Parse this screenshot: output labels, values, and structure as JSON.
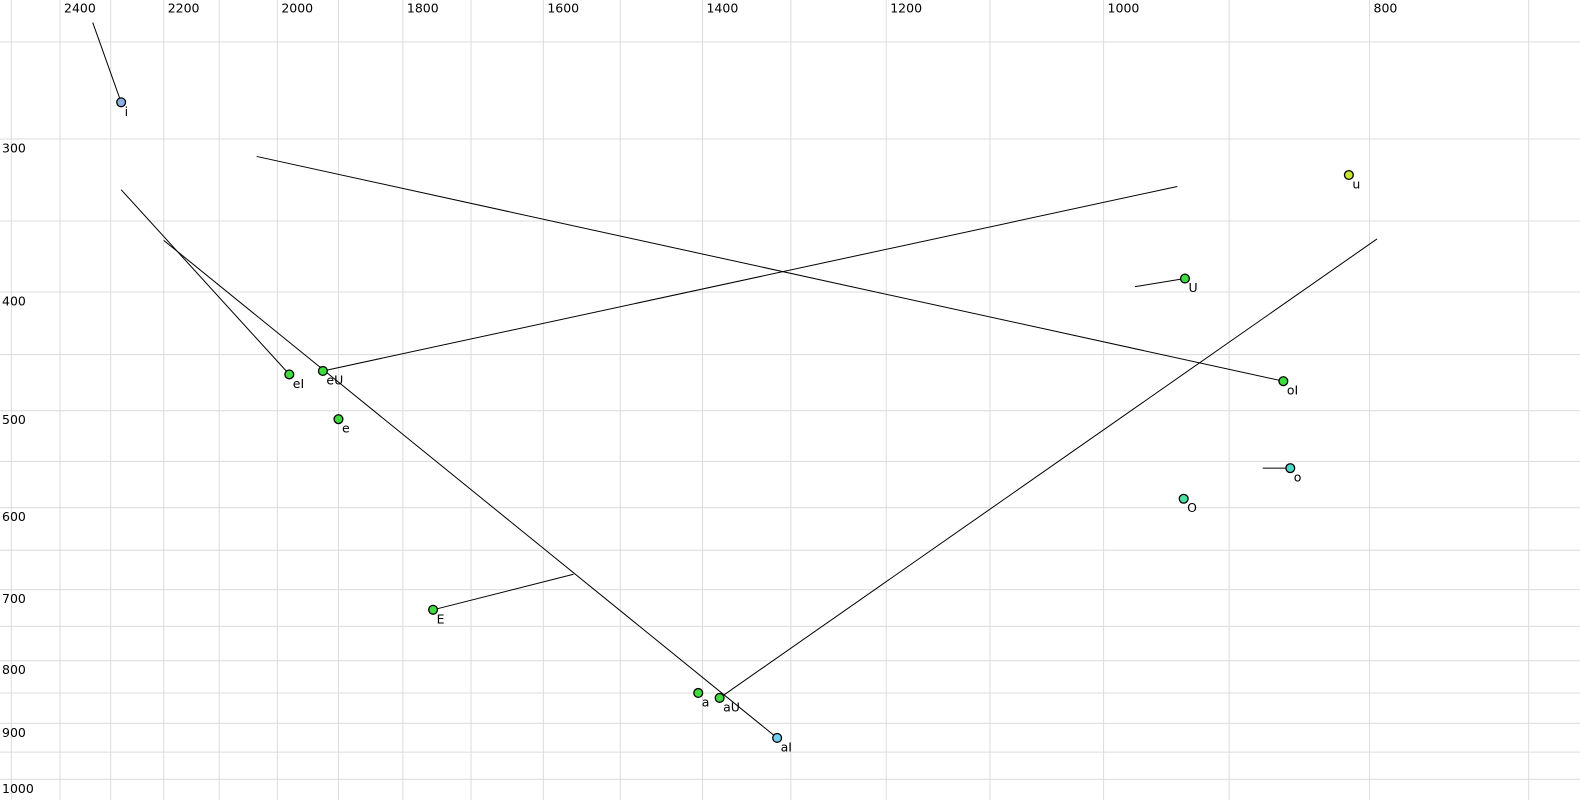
{
  "chart_data": {
    "type": "scatter",
    "x_axis": {
      "tick_labels": [
        "2400",
        "2200",
        "2000",
        "1800",
        "1600",
        "1400",
        "1200",
        "1000",
        "800"
      ],
      "tick_values": [
        2400,
        2200,
        2000,
        1800,
        1600,
        1400,
        1200,
        1000,
        800
      ],
      "scale": "log",
      "reversed": true,
      "grid_step_hz": 100,
      "grid_range": [
        700,
        2500
      ]
    },
    "y_axis": {
      "tick_labels": [
        "300",
        "400",
        "500",
        "600",
        "700",
        "800",
        "900",
        "1000"
      ],
      "tick_values": [
        300,
        400,
        500,
        600,
        700,
        800,
        900,
        1000
      ],
      "scale": "log",
      "downward": true,
      "grid_step_hz": 50,
      "grid_range": [
        250,
        1000
      ]
    },
    "grid_color": "#dcdcdc",
    "line_color": "#000000",
    "points": [
      {
        "label": "i",
        "f2": 2280,
        "f1": 280,
        "color": "#8cb2e0",
        "glide": {
          "f2": 2335,
          "f1": 241
        }
      },
      {
        "label": "u",
        "f2": 814,
        "f1": 321,
        "color": "#c6e72f"
      },
      {
        "label": "U",
        "f2": 934,
        "f1": 390,
        "color": "#3fdc3f",
        "glide": {
          "f2": 974,
          "f1": 396
        }
      },
      {
        "label": "eI",
        "f2": 1980,
        "f1": 467,
        "color": "#3fdc3f",
        "glide": {
          "f2": 2280,
          "f1": 330
        }
      },
      {
        "label": "eU",
        "f2": 1925,
        "f1": 464,
        "color": "#3fdc3f",
        "glide": {
          "f2": 940,
          "f1": 328
        }
      },
      {
        "label": "e",
        "f2": 1900,
        "f1": 508,
        "color": "#3fdc3f"
      },
      {
        "label": "oI",
        "f2": 860,
        "f1": 473,
        "color": "#3fdc3f",
        "glide": {
          "f2": 2035,
          "f1": 310
        }
      },
      {
        "label": "o",
        "f2": 855,
        "f1": 557,
        "color": "#4cd9c4",
        "glide": {
          "f2": 875,
          "f1": 557
        }
      },
      {
        "label": "O",
        "f2": 935,
        "f1": 590,
        "color": "#4ae2a0"
      },
      {
        "label": "E",
        "f2": 1755,
        "f1": 727,
        "color": "#3fdc3f",
        "glide": {
          "f2": 1560,
          "f1": 680
        }
      },
      {
        "label": "a",
        "f2": 1405,
        "f1": 850,
        "color": "#3fdc3f"
      },
      {
        "label": "aU",
        "f2": 1380,
        "f1": 858,
        "color": "#3fdc3f",
        "glide": {
          "f2": 795,
          "f1": 362
        }
      },
      {
        "label": "aI",
        "f2": 1315,
        "f1": 925,
        "color": "#70d0f0",
        "glide": {
          "f2": 2200,
          "f1": 363
        }
      }
    ]
  }
}
